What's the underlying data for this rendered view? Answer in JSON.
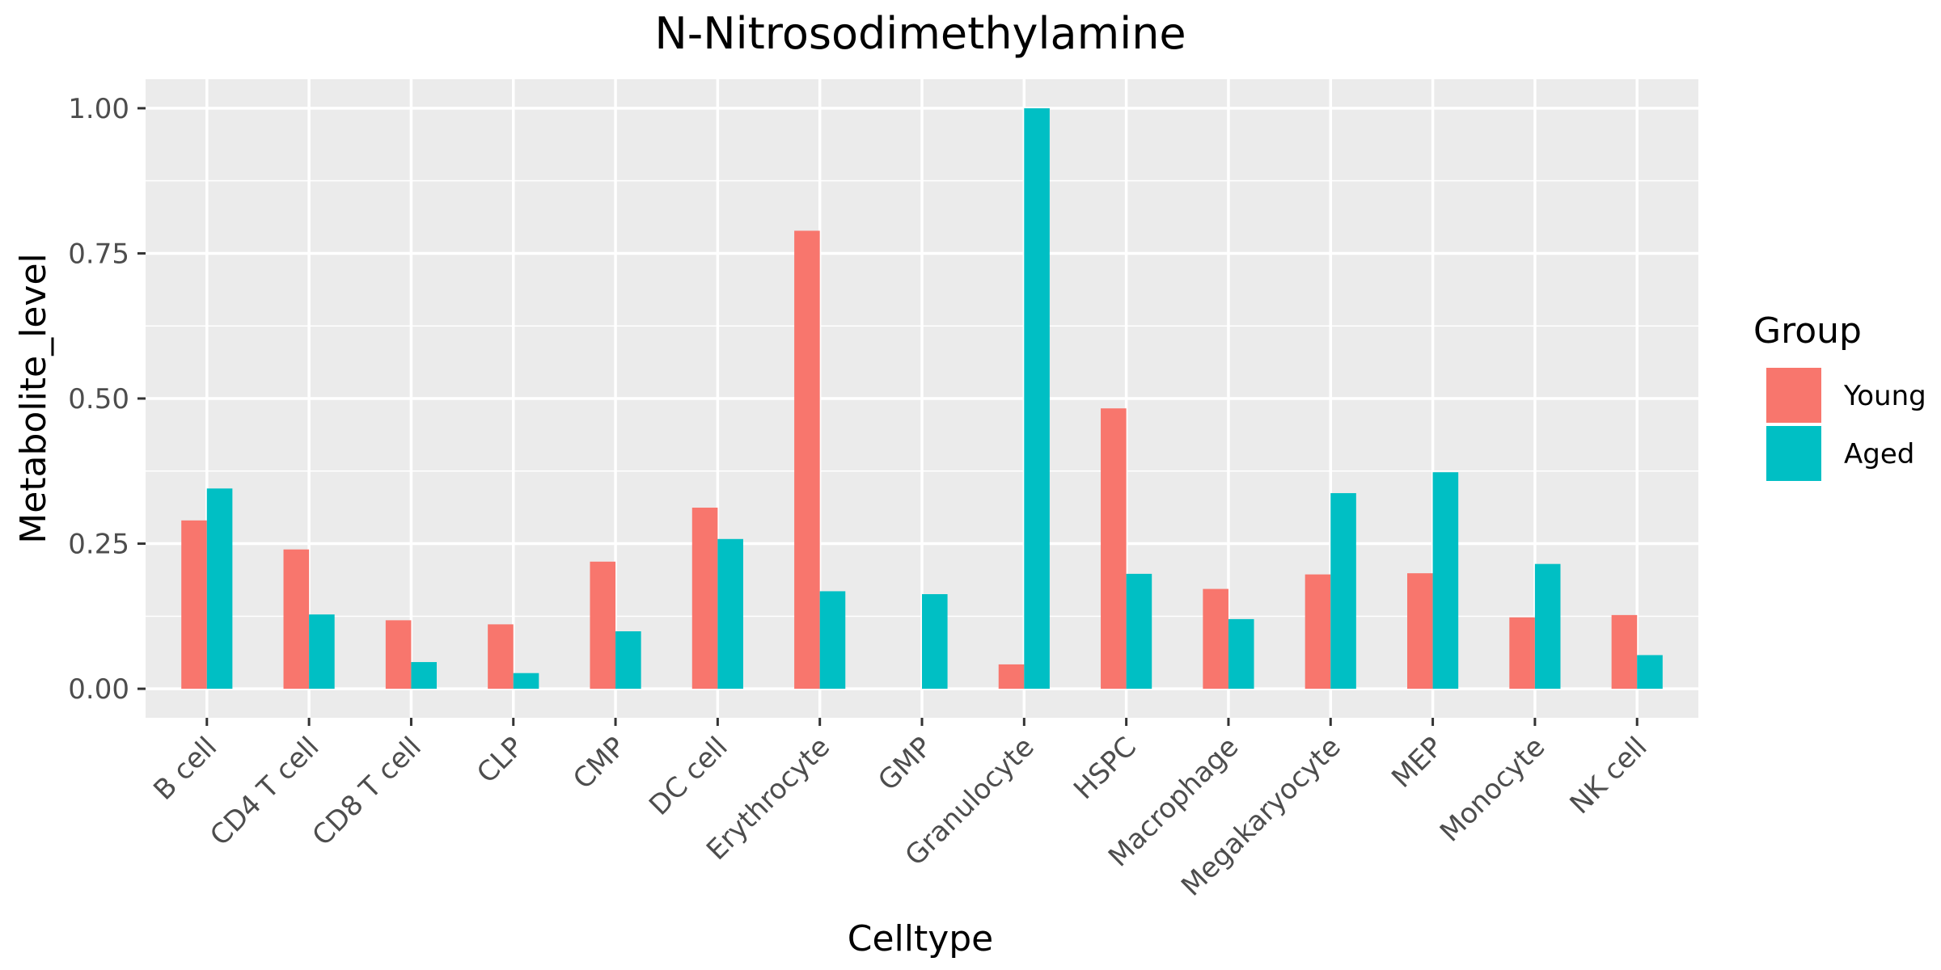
{
  "chart_data": {
    "type": "bar",
    "title": "N-Nitrosodimethylamine",
    "xlabel": "Celltype",
    "ylabel": "Metabolite_level",
    "ylim": [
      -0.05,
      1.05
    ],
    "yticks": [
      0.0,
      0.25,
      0.5,
      0.75,
      1.0
    ],
    "ytick_labels": [
      "0.00",
      "0.25",
      "0.50",
      "0.75",
      "1.00"
    ],
    "grid": true,
    "legend": {
      "title": "Group",
      "position": "right"
    },
    "categories": [
      "B cell",
      "CD4 T cell",
      "CD8 T cell",
      "CLP",
      "CMP",
      "DC cell",
      "Erythrocyte",
      "GMP",
      "Granulocyte",
      "HSPC",
      "Macrophage",
      "Megakaryocyte",
      "MEP",
      "Monocyte",
      "NK cell"
    ],
    "series": [
      {
        "name": "Young",
        "color": "#F8766D",
        "values": [
          0.29,
          0.24,
          0.118,
          0.111,
          0.219,
          0.312,
          0.789,
          0.0,
          0.042,
          0.483,
          0.172,
          0.197,
          0.199,
          0.123,
          0.127
        ]
      },
      {
        "name": "Aged",
        "color": "#00BFC4",
        "values": [
          0.345,
          0.128,
          0.046,
          0.027,
          0.099,
          0.258,
          0.168,
          0.163,
          1.0,
          0.198,
          0.12,
          0.337,
          0.373,
          0.215,
          0.058
        ]
      }
    ]
  }
}
